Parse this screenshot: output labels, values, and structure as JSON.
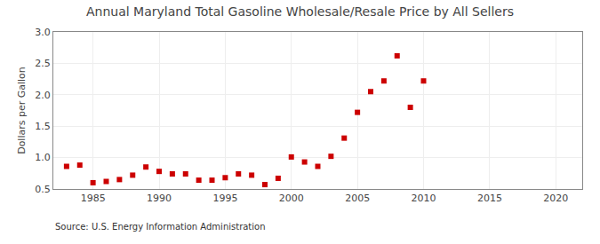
{
  "chart_data": {
    "type": "scatter",
    "title": "Annual Maryland Total Gasoline Wholesale/Resale Price by All Sellers",
    "ylabel": "Dollars per Gallon",
    "annotations": [
      "Source: U.S. Energy Information Administration"
    ],
    "x": [
      1983,
      1984,
      1985,
      1986,
      1987,
      1988,
      1989,
      1990,
      1991,
      1992,
      1993,
      1994,
      1995,
      1996,
      1997,
      1998,
      1999,
      2000,
      2001,
      2002,
      2003,
      2004,
      2005,
      2006,
      2007,
      2008,
      2009,
      2010
    ],
    "values": [
      0.86,
      0.88,
      0.6,
      0.62,
      0.65,
      0.72,
      0.85,
      0.78,
      0.74,
      0.74,
      0.64,
      0.64,
      0.68,
      0.74,
      0.72,
      0.57,
      0.67,
      1.01,
      0.93,
      0.86,
      1.02,
      1.31,
      1.72,
      2.05,
      2.22,
      2.62,
      1.8,
      2.22
    ],
    "color": "#cc0000",
    "marker": "square",
    "xlim": [
      1982,
      2022
    ],
    "xticks": [
      1985,
      1990,
      1995,
      2000,
      2005,
      2010,
      2015,
      2020
    ],
    "ylim": [
      0.5,
      3.0
    ],
    "yticks": [
      0.5,
      {
        "value": 1.0,
        "label": "1.0"
      },
      1.5,
      {
        "value": 2.0,
        "label": "2.0"
      },
      2.5,
      {
        "value": 3.0,
        "label": "3.0"
      }
    ],
    "grid": true
  }
}
